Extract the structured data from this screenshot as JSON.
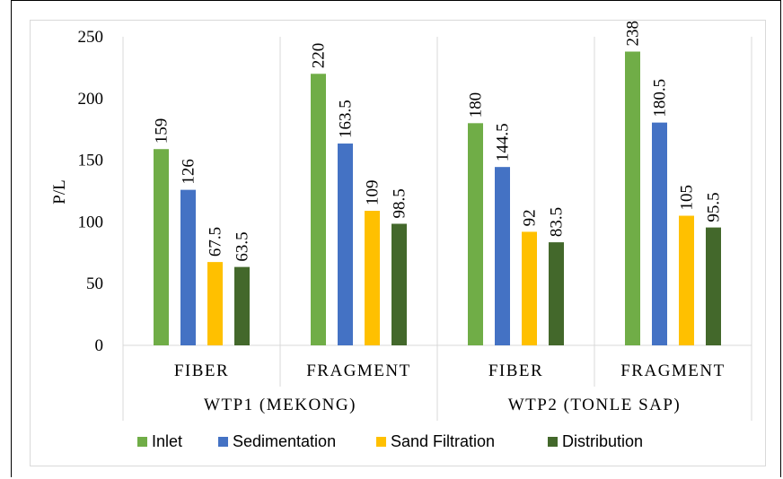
{
  "chart_data": {
    "type": "bar",
    "ylabel": "P/L",
    "ylim": [
      0,
      250
    ],
    "yticks": [
      0,
      50,
      100,
      150,
      200,
      250
    ],
    "groups": [
      "WTP1 (MEKONG)",
      "WTP2 (TONLE SAP)"
    ],
    "categories": [
      "FIBER",
      "FRAGMENT",
      "FIBER",
      "FRAGMENT"
    ],
    "series": [
      {
        "name": "Inlet",
        "color": "#70ad47",
        "values": [
          159,
          220,
          180,
          238
        ]
      },
      {
        "name": "Sedimentation",
        "color": "#4472c4",
        "values": [
          126,
          163.5,
          144.5,
          180.5
        ]
      },
      {
        "name": "Sand Filtration",
        "color": "#ffc000",
        "values": [
          67.5,
          109,
          92,
          105
        ]
      },
      {
        "name": "Distribution",
        "color": "#43682b",
        "values": [
          63.5,
          98.5,
          83.5,
          95.5
        ]
      }
    ],
    "grid": "vertical-separators",
    "legend_position": "bottom",
    "data_labels": true
  }
}
